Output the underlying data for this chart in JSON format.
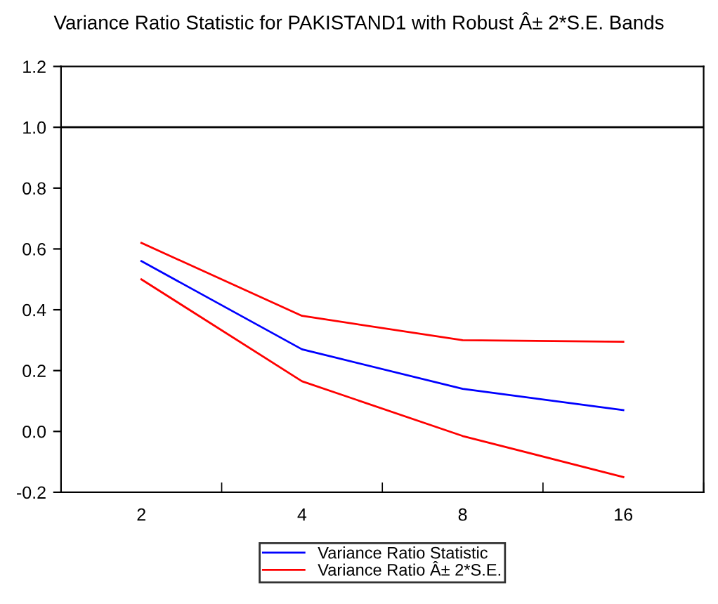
{
  "chart_data": {
    "type": "line",
    "title": "Variance Ratio Statistic for PAKISTAND1 with Robust Â± 2*S.E. Bands",
    "categories": [
      "2",
      "4",
      "8",
      "16"
    ],
    "series": [
      {
        "name": "Variance Ratio Statistic",
        "color": "#0000ff",
        "values": [
          0.56,
          0.27,
          0.14,
          0.07
        ]
      },
      {
        "name": "Variance Ratio Â± 2*S.E.",
        "color": "#ff0000",
        "values": [
          0.62,
          0.38,
          0.3,
          0.295
        ]
      },
      {
        "color": "#ff0000",
        "values": [
          0.5,
          0.165,
          -0.015,
          -0.15
        ]
      }
    ],
    "ylim": [
      -0.2,
      1.2
    ],
    "yticks": [
      {
        "value": -0.2,
        "label": "-0.2"
      },
      {
        "value": 0.0,
        "label": "0.0"
      },
      {
        "value": 0.2,
        "label": "0.2"
      },
      {
        "value": 0.4,
        "label": "0.4"
      },
      {
        "value": 0.6,
        "label": "0.6"
      },
      {
        "value": 0.8,
        "label": "0.8"
      },
      {
        "value": 1.0,
        "label": "1.0"
      },
      {
        "value": 1.2,
        "label": "1.2"
      }
    ],
    "ref_lines": [
      {
        "axis": "y",
        "value": 1.0,
        "color": "#000000"
      }
    ],
    "grid": false,
    "legend": "bottom",
    "marker": "none",
    "line_style": "solid"
  }
}
